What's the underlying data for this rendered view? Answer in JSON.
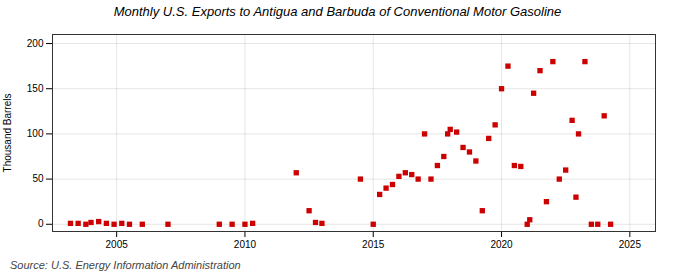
{
  "chart_data": {
    "type": "scatter",
    "title": "Monthly U.S. Exports to Antigua and Barbuda of Conventional Motor Gasoline",
    "ylabel": "Thousand Barrels",
    "source": "Source: U.S. Energy Information Administration",
    "color": "#cc0000",
    "marker": "square",
    "grid": true,
    "xlim": [
      2002.5,
      2026.0
    ],
    "ylim": [
      -8,
      210
    ],
    "xticks": [
      2005,
      2010,
      2015,
      2020,
      2025
    ],
    "yticks": [
      0,
      50,
      100,
      150,
      200
    ],
    "x": [
      2003.2,
      2003.5,
      2003.8,
      2004.0,
      2004.3,
      2004.6,
      2004.9,
      2005.2,
      2005.5,
      2006.0,
      2007.0,
      2009.0,
      2009.5,
      2010.0,
      2010.3,
      2012.0,
      2012.5,
      2012.75,
      2013.0,
      2014.5,
      2015.0,
      2015.25,
      2015.5,
      2015.75,
      2016.0,
      2016.25,
      2016.5,
      2016.75,
      2017.0,
      2017.25,
      2017.5,
      2017.75,
      2017.9,
      2018.0,
      2018.25,
      2018.5,
      2018.75,
      2019.0,
      2019.25,
      2019.5,
      2019.75,
      2020.0,
      2020.25,
      2020.5,
      2020.75,
      2021.0,
      2021.1,
      2021.25,
      2021.5,
      2021.75,
      2022.0,
      2022.25,
      2022.5,
      2022.75,
      2022.9,
      2023.0,
      2023.25,
      2023.5,
      2023.75,
      2024.0,
      2024.25
    ],
    "values": [
      1,
      1,
      0,
      2,
      3,
      1,
      0,
      1,
      0,
      0,
      0,
      0,
      0,
      0,
      1,
      57,
      15,
      2,
      1,
      50,
      0,
      33,
      40,
      44,
      53,
      57,
      55,
      50,
      100,
      50,
      65,
      75,
      100,
      105,
      102,
      85,
      80,
      70,
      15,
      95,
      110,
      150,
      175,
      65,
      64,
      0,
      5,
      145,
      170,
      25,
      180,
      50,
      60,
      115,
      30,
      100,
      180,
      0,
      0,
      120,
      0
    ]
  }
}
